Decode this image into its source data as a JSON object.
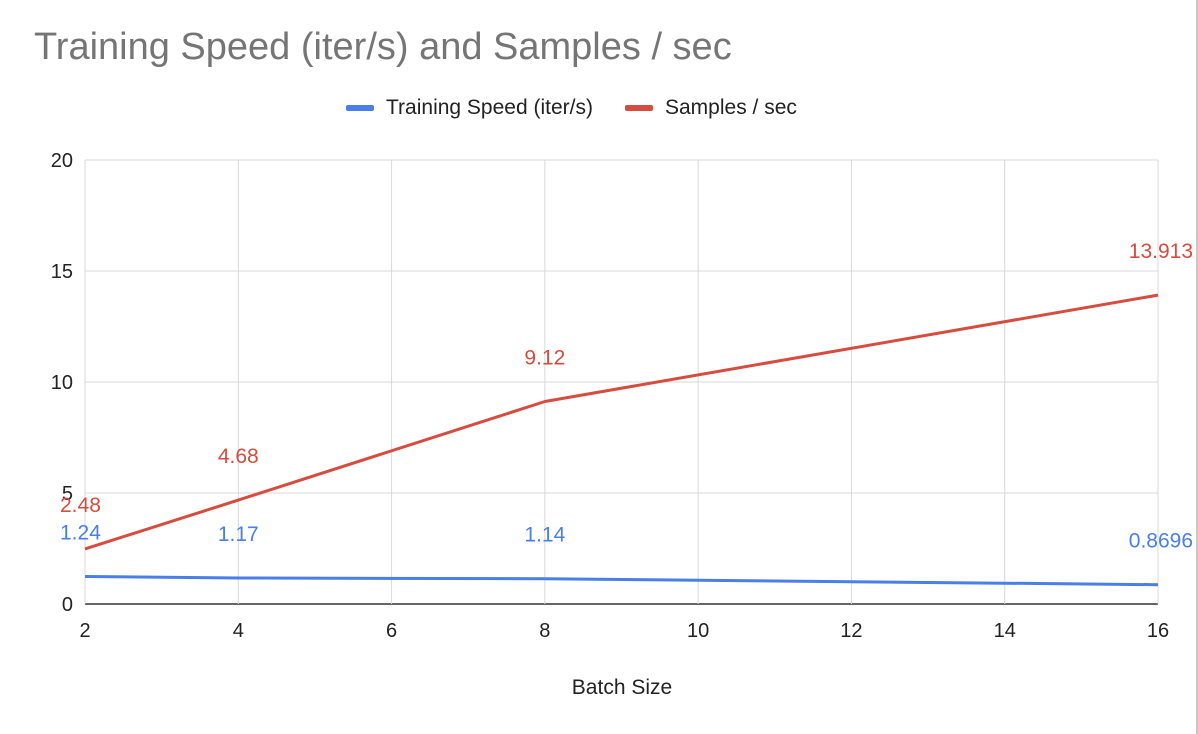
{
  "chart_data": {
    "type": "line",
    "title": "Training Speed (iter/s) and Samples / sec",
    "xlabel": "Batch Size",
    "ylabel": "",
    "xlim": [
      2,
      16
    ],
    "ylim": [
      0,
      20
    ],
    "x_ticks": [
      2,
      4,
      6,
      8,
      10,
      12,
      14,
      16
    ],
    "y_ticks": [
      0,
      5,
      10,
      15,
      20
    ],
    "grid": true,
    "legend_position": "top",
    "series": [
      {
        "name": "Training Speed (iter/s)",
        "color": "#4a7ee8",
        "x": [
          2,
          4,
          8,
          16
        ],
        "values": [
          1.24,
          1.17,
          1.14,
          0.8696
        ],
        "labels": [
          "1.24",
          "1.17",
          "1.14",
          "0.8696"
        ]
      },
      {
        "name": "Samples / sec",
        "color": "#d64c3f",
        "x": [
          2,
          4,
          8,
          16
        ],
        "values": [
          2.48,
          4.68,
          9.12,
          13.913
        ],
        "labels": [
          "2.48",
          "4.68",
          "9.12",
          "13.913"
        ]
      }
    ]
  }
}
